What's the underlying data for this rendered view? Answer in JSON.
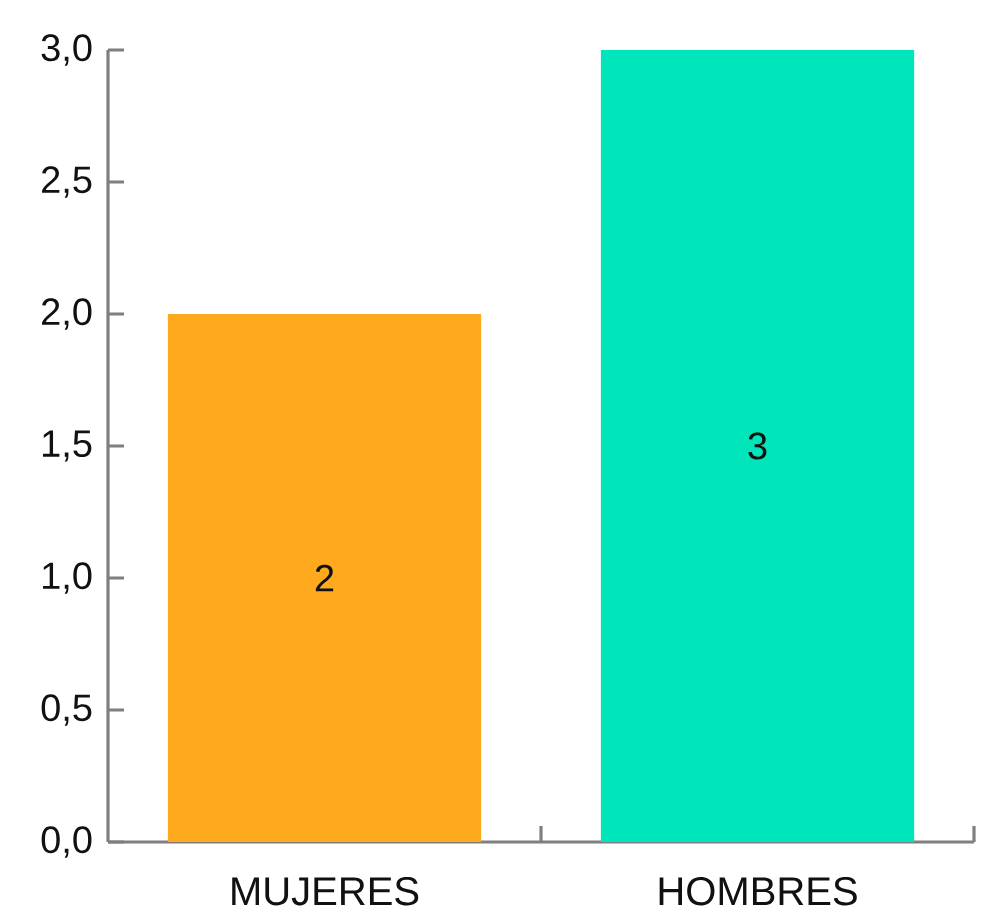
{
  "chart_data": {
    "type": "bar",
    "categories": [
      "MUJERES",
      "HOMBRES"
    ],
    "values": [
      2,
      3
    ],
    "colors": [
      "#ffa91e",
      "#00e6ba"
    ],
    "ylim": [
      0,
      3
    ],
    "yticks": [
      {
        "value": 0,
        "label": "0,0"
      },
      {
        "value": 0.5,
        "label": "0,5"
      },
      {
        "value": 1,
        "label": "1,0"
      },
      {
        "value": 1.5,
        "label": "1,5"
      },
      {
        "value": 2,
        "label": "2,0"
      },
      {
        "value": 2.5,
        "label": "2,5"
      },
      {
        "value": 3,
        "label": "3,0"
      }
    ],
    "data_labels": true
  }
}
